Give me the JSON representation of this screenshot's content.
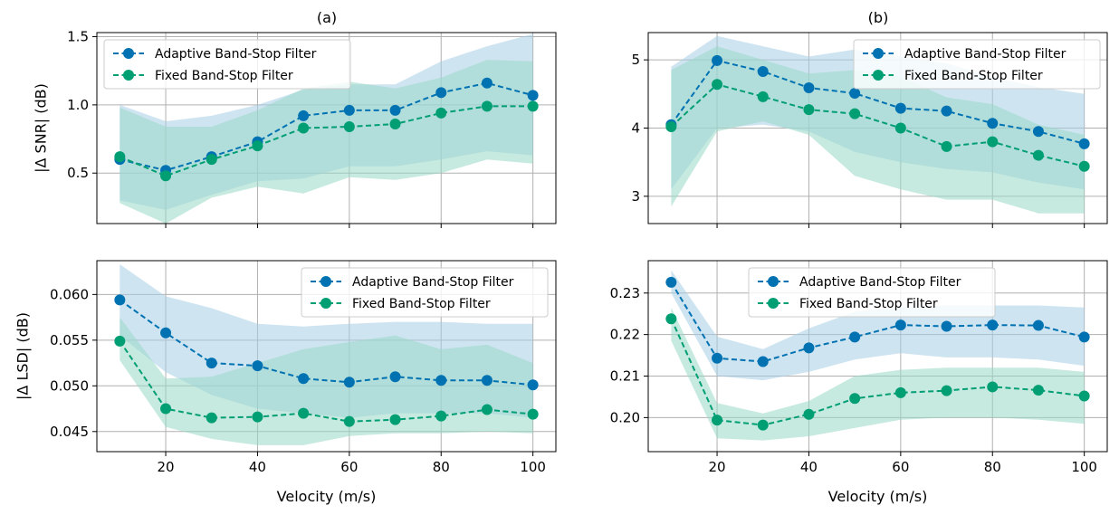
{
  "figure": {
    "titles": {
      "a": "(a)",
      "b": "(b)"
    }
  },
  "colors": {
    "adaptive": "#0072b2",
    "fixed": "#009e73",
    "adaptive_band": "#a6cde5",
    "fixed_band": "#99d8c7"
  },
  "chart_data": [
    {
      "id": "top-left",
      "type": "line",
      "title": "(a)",
      "xlabel": "",
      "ylabel": "|Δ SNR| (dB)",
      "x": [
        10,
        20,
        30,
        40,
        50,
        60,
        70,
        80,
        90,
        100
      ],
      "xlim": [
        5,
        105
      ],
      "ylim": [
        0.13,
        1.53
      ],
      "xticks": [
        20,
        40,
        60,
        80,
        100
      ],
      "xtick_labels": [
        "",
        "",
        "",
        "",
        ""
      ],
      "yticks": [
        0.5,
        1.0,
        1.5
      ],
      "ytick_labels": [
        "0.5",
        "1.0",
        "1.5"
      ],
      "grid": true,
      "legend": "top-left",
      "series": [
        {
          "name": "Adaptive Band-Stop Filter",
          "color_key": "adaptive",
          "values": [
            0.6,
            0.52,
            0.62,
            0.73,
            0.92,
            0.96,
            0.96,
            1.09,
            1.16,
            1.07
          ],
          "band_low": [
            0.3,
            0.23,
            0.34,
            0.44,
            0.46,
            0.55,
            0.55,
            0.6,
            0.66,
            0.63
          ],
          "band_high": [
            1.0,
            0.88,
            0.92,
            1.0,
            1.11,
            1.15,
            1.15,
            1.32,
            1.43,
            1.52
          ]
        },
        {
          "name": "Fixed Band-Stop Filter",
          "color_key": "fixed",
          "values": [
            0.62,
            0.48,
            0.6,
            0.7,
            0.83,
            0.84,
            0.86,
            0.94,
            0.99,
            0.99
          ],
          "band_low": [
            0.28,
            0.13,
            0.32,
            0.4,
            0.35,
            0.47,
            0.45,
            0.5,
            0.6,
            0.57
          ],
          "band_high": [
            0.98,
            0.84,
            0.84,
            0.96,
            1.12,
            1.17,
            1.12,
            1.2,
            1.33,
            1.32
          ]
        }
      ]
    },
    {
      "id": "top-right",
      "type": "line",
      "title": "(b)",
      "xlabel": "",
      "ylabel": "",
      "x": [
        10,
        20,
        30,
        40,
        50,
        60,
        70,
        80,
        90,
        100
      ],
      "xlim": [
        5,
        105
      ],
      "ylim": [
        2.6,
        5.4
      ],
      "xticks": [
        20,
        40,
        60,
        80,
        100
      ],
      "xtick_labels": [
        "",
        "",
        "",
        "",
        ""
      ],
      "yticks": [
        3,
        4,
        5
      ],
      "ytick_labels": [
        "3",
        "4",
        "5"
      ],
      "grid": true,
      "legend": "top-right",
      "series": [
        {
          "name": "Adaptive Band-Stop Filter",
          "color_key": "adaptive",
          "values": [
            4.05,
            4.99,
            4.83,
            4.59,
            4.51,
            4.29,
            4.25,
            4.07,
            3.95,
            3.77
          ],
          "band_low": [
            3.1,
            4.0,
            4.05,
            3.95,
            3.65,
            3.5,
            3.4,
            3.35,
            3.2,
            3.1
          ],
          "band_high": [
            4.9,
            5.35,
            5.2,
            5.05,
            5.15,
            5.05,
            4.95,
            4.75,
            4.6,
            4.5
          ]
        },
        {
          "name": "Fixed Band-Stop Filter",
          "color_key": "fixed",
          "values": [
            4.02,
            4.64,
            4.46,
            4.27,
            4.21,
            4.0,
            3.73,
            3.8,
            3.6,
            3.44
          ],
          "band_low": [
            2.85,
            3.95,
            4.1,
            3.9,
            3.3,
            3.1,
            2.95,
            2.95,
            2.75,
            2.75
          ],
          "band_high": [
            4.85,
            5.2,
            5.0,
            4.8,
            4.85,
            4.75,
            4.45,
            4.35,
            4.05,
            3.9
          ]
        }
      ]
    },
    {
      "id": "bottom-left",
      "type": "line",
      "title": "",
      "xlabel": "Velocity (m/s)",
      "ylabel": "|Δ LSD| (dB)",
      "x": [
        10,
        20,
        30,
        40,
        50,
        60,
        70,
        80,
        90,
        100
      ],
      "xlim": [
        5,
        105
      ],
      "ylim": [
        0.0428,
        0.0637
      ],
      "xticks": [
        20,
        40,
        60,
        80,
        100
      ],
      "xtick_labels": [
        "20",
        "40",
        "60",
        "80",
        "100"
      ],
      "yticks": [
        0.045,
        0.05,
        0.055,
        0.06
      ],
      "ytick_labels": [
        "0.045",
        "0.050",
        "0.055",
        "0.060"
      ],
      "grid": true,
      "legend": "top-right",
      "series": [
        {
          "name": "Adaptive Band-Stop Filter",
          "color_key": "adaptive",
          "values": [
            0.0594,
            0.0558,
            0.0525,
            0.0522,
            0.0508,
            0.0504,
            0.051,
            0.0506,
            0.0506,
            0.0501
          ],
          "band_low": [
            0.0555,
            0.0515,
            0.049,
            0.0475,
            0.047,
            0.0465,
            0.047,
            0.047,
            0.047,
            0.0465
          ],
          "band_high": [
            0.0633,
            0.0598,
            0.0585,
            0.0568,
            0.0565,
            0.0568,
            0.057,
            0.057,
            0.0568,
            0.0568
          ]
        },
        {
          "name": "Fixed Band-Stop Filter",
          "color_key": "fixed",
          "values": [
            0.0549,
            0.0475,
            0.0465,
            0.0466,
            0.047,
            0.0461,
            0.0463,
            0.0467,
            0.0474,
            0.0469
          ],
          "band_low": [
            0.0528,
            0.0455,
            0.0442,
            0.0435,
            0.0435,
            0.0445,
            0.0448,
            0.0448,
            0.045,
            0.0448
          ],
          "band_high": [
            0.0575,
            0.0508,
            0.051,
            0.0525,
            0.054,
            0.0548,
            0.0555,
            0.054,
            0.0545,
            0.0525
          ]
        }
      ]
    },
    {
      "id": "bottom-right",
      "type": "line",
      "title": "",
      "xlabel": "Velocity (m/s)",
      "ylabel": "",
      "x": [
        10,
        20,
        30,
        40,
        50,
        60,
        70,
        80,
        90,
        100
      ],
      "xlim": [
        5,
        105
      ],
      "ylim": [
        0.1918,
        0.2378
      ],
      "xticks": [
        20,
        40,
        60,
        80,
        100
      ],
      "xtick_labels": [
        "20",
        "40",
        "60",
        "80",
        "100"
      ],
      "yticks": [
        0.2,
        0.21,
        0.22,
        0.23
      ],
      "ytick_labels": [
        "0.20",
        "0.21",
        "0.22",
        "0.23"
      ],
      "grid": true,
      "legend": "top-center",
      "series": [
        {
          "name": "Adaptive Band-Stop Filter",
          "color_key": "adaptive",
          "values": [
            0.2326,
            0.2143,
            0.2135,
            0.2168,
            0.2194,
            0.2223,
            0.222,
            0.2223,
            0.2222,
            0.2194
          ],
          "band_low": [
            0.23,
            0.21,
            0.209,
            0.211,
            0.214,
            0.2155,
            0.2145,
            0.2145,
            0.214,
            0.2125
          ],
          "band_high": [
            0.2355,
            0.2195,
            0.2165,
            0.2215,
            0.2255,
            0.2265,
            0.227,
            0.227,
            0.227,
            0.2265
          ]
        },
        {
          "name": "Fixed Band-Stop Filter",
          "color_key": "fixed",
          "values": [
            0.2238,
            0.1994,
            0.1982,
            0.2008,
            0.2046,
            0.206,
            0.2065,
            0.2074,
            0.2066,
            0.2052
          ],
          "band_low": [
            0.2185,
            0.195,
            0.1945,
            0.1955,
            0.1975,
            0.1995,
            0.2,
            0.2,
            0.1995,
            0.1985
          ],
          "band_high": [
            0.2265,
            0.2035,
            0.201,
            0.204,
            0.21,
            0.2115,
            0.212,
            0.212,
            0.212,
            0.211
          ]
        }
      ]
    }
  ]
}
